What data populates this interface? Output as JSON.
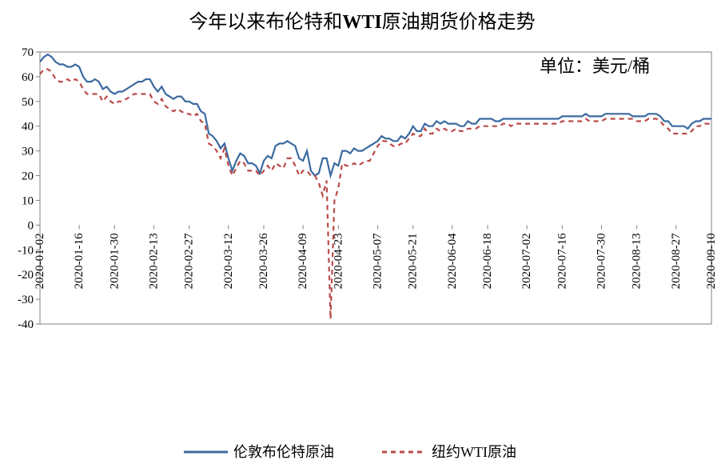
{
  "chart": {
    "type": "line",
    "title_parts": [
      "今年以来布伦特和",
      "WTI",
      "原油期货价格走势"
    ],
    "unit_label": "单位：美元/桶",
    "background_color": "#ffffff",
    "border_color": "#808080",
    "ylim": [
      -40,
      70
    ],
    "ytick_step": 10,
    "ytick_values": [
      -40,
      -30,
      -20,
      -10,
      0,
      10,
      20,
      30,
      40,
      50,
      60,
      70
    ],
    "x_categories": [
      "2020-01-02",
      "2020-01-16",
      "2020-01-30",
      "2020-02-13",
      "2020-02-27",
      "2020-03-12",
      "2020-03-26",
      "2020-04-09",
      "2020-04-23",
      "2020-05-07",
      "2020-05-21",
      "2020-06-04",
      "2020-06-18",
      "2020-07-02",
      "2020-07-16",
      "2020-07-30",
      "2020-08-13",
      "2020-08-27",
      "2020-09-10"
    ],
    "title_fontsize": 24,
    "axis_fontsize": 15,
    "legend_fontsize": 18,
    "series": [
      {
        "name": "伦敦布伦特原油",
        "color": "#3b6aa0",
        "line_width": 2.2,
        "dash": "solid",
        "data": [
          66,
          68,
          69,
          68,
          66,
          65,
          65,
          64,
          64,
          65,
          64,
          60,
          58,
          58,
          59,
          58,
          55,
          56,
          54,
          53,
          54,
          54,
          55,
          56,
          57,
          58,
          58,
          59,
          59,
          56,
          54,
          56,
          53,
          52,
          51,
          52,
          52,
          50,
          50,
          49,
          49,
          46,
          45,
          37,
          36,
          34,
          31,
          33,
          27,
          22,
          26,
          29,
          28,
          25,
          25,
          24,
          21,
          26,
          28,
          27,
          32,
          33,
          33,
          34,
          33,
          32,
          27,
          26,
          30,
          22,
          20,
          21,
          27,
          27,
          20,
          25,
          24,
          30,
          30,
          29,
          31,
          30,
          30,
          31,
          32,
          33,
          34,
          36,
          35,
          35,
          34,
          34,
          36,
          35,
          37,
          40,
          38,
          38,
          41,
          40,
          40,
          42,
          41,
          42,
          41,
          41,
          41,
          40,
          40,
          42,
          41,
          41,
          43,
          43,
          43,
          43,
          42,
          42,
          43,
          43,
          43,
          43,
          43,
          43,
          43,
          43,
          43,
          43,
          43,
          43,
          43,
          43,
          43,
          44,
          44,
          44,
          44,
          44,
          44,
          45,
          44,
          44,
          44,
          44,
          45,
          45,
          45,
          45,
          45,
          45,
          45,
          44,
          44,
          44,
          44,
          45,
          45,
          45,
          44,
          42,
          42,
          40,
          40,
          40,
          40,
          39,
          41,
          42,
          42,
          43,
          43,
          43
        ]
      },
      {
        "name": "纽约WTI原油",
        "color": "#b94a48",
        "line_width": 2.2,
        "dash": "6,5",
        "data": [
          61,
          63,
          63,
          62,
          59,
          58,
          58,
          59,
          58,
          59,
          58,
          55,
          53,
          53,
          53,
          53,
          50,
          52,
          50,
          49,
          50,
          50,
          51,
          52,
          53,
          53,
          53,
          53,
          53,
          50,
          49,
          51,
          48,
          47,
          46,
          47,
          46,
          45,
          45,
          44,
          45,
          42,
          41,
          33,
          32,
          30,
          27,
          31,
          24,
          20,
          23,
          26,
          25,
          22,
          22,
          22,
          20,
          22,
          24,
          22,
          25,
          24,
          23,
          27,
          27,
          24,
          20,
          22,
          22,
          20,
          20,
          17,
          12,
          18,
          -38,
          10,
          15,
          25,
          24,
          24,
          25,
          24,
          25,
          26,
          26,
          29,
          32,
          34,
          34,
          33,
          32,
          32,
          33,
          33,
          35,
          37,
          36,
          36,
          39,
          37,
          37,
          39,
          38,
          39,
          38,
          38,
          39,
          38,
          38,
          39,
          39,
          39,
          40,
          40,
          40,
          40,
          40,
          40,
          41,
          41,
          40,
          41,
          41,
          41,
          41,
          41,
          41,
          41,
          41,
          41,
          41,
          41,
          41,
          42,
          42,
          42,
          42,
          42,
          42,
          43,
          42,
          42,
          42,
          42,
          43,
          43,
          43,
          43,
          43,
          43,
          43,
          43,
          42,
          42,
          42,
          43,
          43,
          43,
          42,
          40,
          39,
          37,
          37,
          37,
          37,
          37,
          38,
          40,
          40,
          41,
          41,
          41
        ]
      }
    ],
    "legend": {
      "items": [
        "伦敦布伦特原油",
        "纽约WTI原油"
      ],
      "position": "bottom"
    }
  }
}
